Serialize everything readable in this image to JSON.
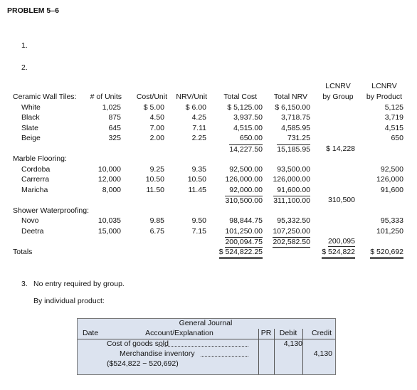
{
  "header": {
    "title": "PROBLEM 5–6"
  },
  "items": [
    "1.",
    "2."
  ],
  "table": {
    "headers": {
      "units": "# of Units",
      "cost_unit": "Cost/Unit",
      "nrv_unit": "NRV/Unit",
      "total_cost": "Total Cost",
      "total_nrv": "Total NRV",
      "lcnrv_group": [
        "LCNRV",
        "by Group"
      ],
      "lcnrv_product": [
        "LCNRV",
        "by Product"
      ]
    },
    "groups": [
      {
        "name": "Ceramic Wall Tiles:",
        "items": [
          {
            "name": "White",
            "units": "1,025",
            "cost_unit": "$ 5.00",
            "nrv_unit": "$ 6.00",
            "total_cost": "$ 5,125.00",
            "total_nrv": "$ 6,150.00",
            "lcnrv_product": "5,125"
          },
          {
            "name": "Black",
            "units": "875",
            "cost_unit": "4.50",
            "nrv_unit": "4.25",
            "total_cost": "3,937.50",
            "total_nrv": "3,718.75",
            "lcnrv_product": "3,719"
          },
          {
            "name": "Slate",
            "units": "645",
            "cost_unit": "7.00",
            "nrv_unit": "7.11",
            "total_cost": "4,515.00",
            "total_nrv": "4,585.95",
            "lcnrv_product": "4,515"
          },
          {
            "name": "Beige",
            "units": "325",
            "cost_unit": "2.00",
            "nrv_unit": "2.25",
            "total_cost": "650.00",
            "total_nrv": "731.25",
            "lcnrv_product": "650"
          }
        ],
        "subtotal": {
          "total_cost": "14,227.50",
          "total_nrv": "15,185.95",
          "lcnrv_group": "$ 14,228"
        }
      },
      {
        "name": "Marble Flooring:",
        "items": [
          {
            "name": "Cordoba",
            "units": "10,000",
            "cost_unit": "9.25",
            "nrv_unit": "9.35",
            "total_cost": "92,500.00",
            "total_nrv": "93,500.00",
            "lcnrv_product": "92,500"
          },
          {
            "name": "Carrerra",
            "units": "12,000",
            "cost_unit": "10.50",
            "nrv_unit": "10.50",
            "total_cost": "126,000.00",
            "total_nrv": "126,000.00",
            "lcnrv_product": "126,000"
          },
          {
            "name": "Maricha",
            "units": "8,000",
            "cost_unit": "11.50",
            "nrv_unit": "11.45",
            "total_cost": "92,000.00",
            "total_nrv": "91,600.00",
            "lcnrv_product": "91,600"
          }
        ],
        "subtotal": {
          "total_cost": "310,500.00",
          "total_nrv": "311,100.00",
          "lcnrv_group": "310,500"
        }
      },
      {
        "name": "Shower Waterproofing:",
        "items": [
          {
            "name": "Novo",
            "units": "10,035",
            "cost_unit": "9.85",
            "nrv_unit": "9.50",
            "total_cost": "98,844.75",
            "total_nrv": "95,332.50",
            "lcnrv_product": "95,333"
          },
          {
            "name": "Deetra",
            "units": "15,000",
            "cost_unit": "6.75",
            "nrv_unit": "7.15",
            "total_cost": "101,250.00",
            "total_nrv": "107,250.00",
            "lcnrv_product": "101,250"
          }
        ],
        "subtotal": {
          "total_cost": "200,094.75",
          "total_nrv": "202,582.50",
          "lcnrv_group": "200,095"
        }
      }
    ],
    "totals": {
      "name": "Totals",
      "total_cost": "$ 524,822.25",
      "lcnrv_group": "$ 524,822",
      "lcnrv_product": "$ 520,692"
    }
  },
  "part3": {
    "number": "3.",
    "text": "No entry required by group.",
    "subtext": "By individual product:"
  },
  "journal": {
    "title": "General Journal",
    "headers": {
      "date": "Date",
      "account": "Account/Explanation",
      "pr": "PR",
      "debit": "Debit",
      "credit": "Credit"
    },
    "entries": [
      {
        "account": "Cost of goods sold",
        "debit": "4,130"
      },
      {
        "account": "Merchandise inventory",
        "credit": "4,130"
      },
      {
        "account": "($524,822 − 520,692)"
      }
    ]
  }
}
